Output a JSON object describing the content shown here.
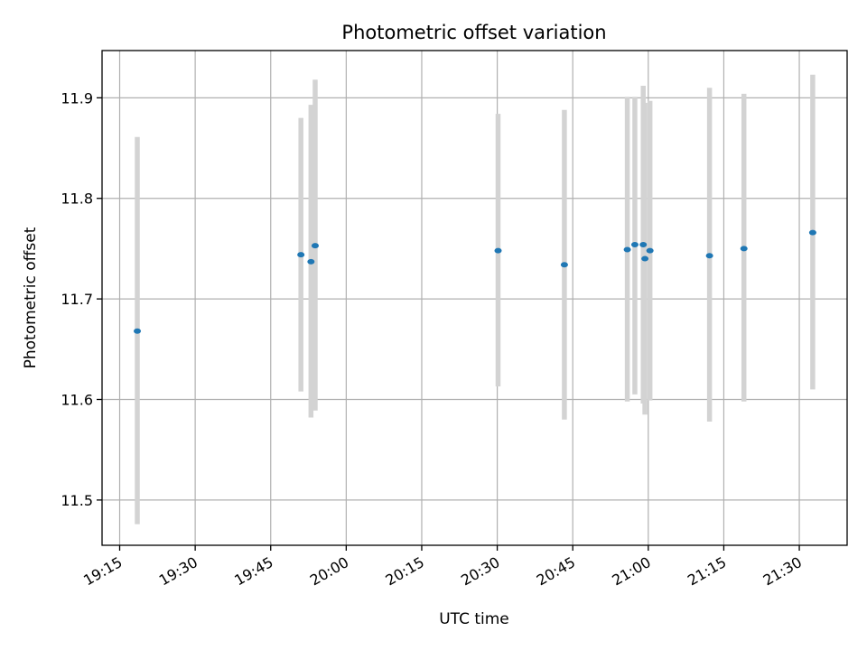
{
  "chart_data": {
    "type": "scatter",
    "title": "Photometric offset variation",
    "xlabel": "UTC time",
    "ylabel": "Photometric offset",
    "x_tick_labels": [
      "19:15",
      "19:30",
      "19:45",
      "20:00",
      "20:15",
      "20:30",
      "20:45",
      "21:00",
      "21:15",
      "21:30"
    ],
    "x_ticks_minutes": [
      1155,
      1170,
      1185,
      1200,
      1215,
      1230,
      1245,
      1260,
      1275,
      1290
    ],
    "xlim_minutes": [
      1151.5,
      1299.5
    ],
    "y_ticks": [
      11.5,
      11.6,
      11.7,
      11.8,
      11.9
    ],
    "y_tick_labels": [
      "11.5",
      "11.6",
      "11.7",
      "11.8",
      "11.9"
    ],
    "ylim": [
      11.455,
      11.947
    ],
    "grid": true,
    "point_color": "#1f77b4",
    "errorbar_color": "#d3d3d3",
    "points": [
      {
        "time": "19:18:30",
        "y": 11.668,
        "err_low": 11.476,
        "err_high": 11.861
      },
      {
        "time": "19:51:00",
        "y": 11.744,
        "err_low": 11.608,
        "err_high": 11.88
      },
      {
        "time": "19:53:00",
        "y": 11.737,
        "err_low": 11.582,
        "err_high": 11.893
      },
      {
        "time": "19:53:50",
        "y": 11.753,
        "err_low": 11.589,
        "err_high": 11.918
      },
      {
        "time": "20:30:10",
        "y": 11.748,
        "err_low": 11.613,
        "err_high": 11.884
      },
      {
        "time": "20:43:20",
        "y": 11.734,
        "err_low": 11.58,
        "err_high": 11.888
      },
      {
        "time": "20:55:50",
        "y": 11.749,
        "err_low": 11.598,
        "err_high": 11.901
      },
      {
        "time": "20:57:20",
        "y": 11.754,
        "err_low": 11.605,
        "err_high": 11.901
      },
      {
        "time": "20:59:00",
        "y": 11.754,
        "err_low": 11.596,
        "err_high": 11.912
      },
      {
        "time": "20:59:20",
        "y": 11.74,
        "err_low": 11.585,
        "err_high": 11.895
      },
      {
        "time": "21:00:20",
        "y": 11.748,
        "err_low": 11.599,
        "err_high": 11.897
      },
      {
        "time": "21:12:10",
        "y": 11.743,
        "err_low": 11.578,
        "err_high": 11.91
      },
      {
        "time": "21:19:00",
        "y": 11.75,
        "err_low": 11.598,
        "err_high": 11.904
      },
      {
        "time": "21:32:40",
        "y": 11.766,
        "err_low": 11.61,
        "err_high": 11.923
      }
    ]
  }
}
